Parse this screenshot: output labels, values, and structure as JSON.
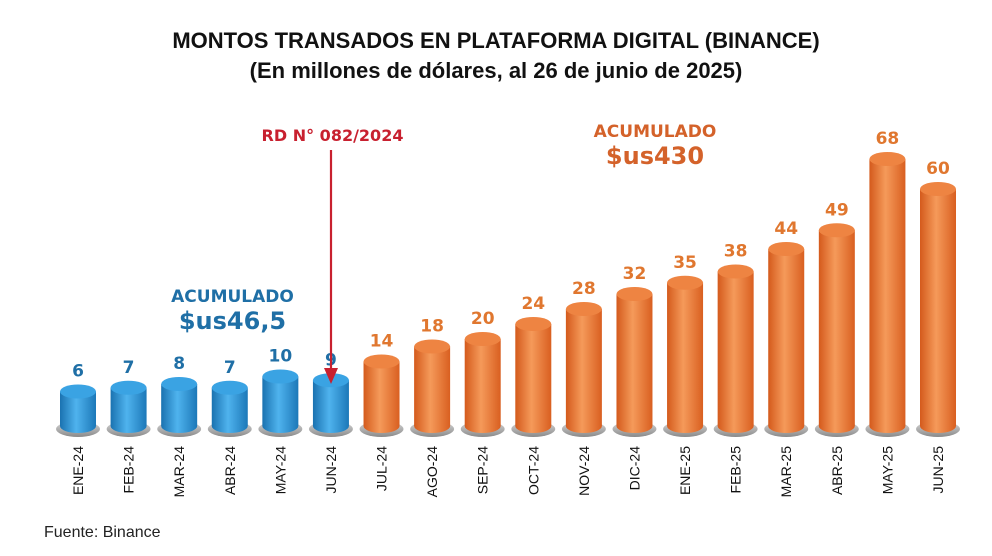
{
  "chart_data": {
    "type": "bar",
    "title": "MONTOS TRANSADOS EN PLATAFORMA DIGITAL (BINANCE)",
    "subtitle": "(En millones de dólares, al 26 de junio de 2025)",
    "xlabel": "",
    "ylabel": "",
    "categories": [
      "ENE-24",
      "FEB-24",
      "MAR-24",
      "ABR-24",
      "MAY-24",
      "JUN-24",
      "JUL-24",
      "AGO-24",
      "SEP-24",
      "OCT-24",
      "NOV-24",
      "DIC-24",
      "ENE-25",
      "FEB-25",
      "MAR-25",
      "ABR-25",
      "MAY-25",
      "JUN-25"
    ],
    "values": [
      6,
      7,
      8,
      7,
      10,
      9,
      14,
      18,
      20,
      24,
      28,
      32,
      35,
      38,
      44,
      49,
      68,
      60
    ],
    "value_labels": [
      "6",
      "7",
      "8",
      "7",
      "10",
      "9",
      "14",
      "18",
      "20",
      "24",
      "28",
      "32",
      "35",
      "38",
      "44",
      "49",
      "68",
      "60"
    ],
    "groups": [
      "before",
      "before",
      "before",
      "before",
      "before",
      "before",
      "after",
      "after",
      "after",
      "after",
      "after",
      "after",
      "after",
      "after",
      "after",
      "after",
      "after",
      "after"
    ],
    "colors": {
      "before": "#2f95d6",
      "after": "#ea7a33",
      "before_label": "#1f6fa6",
      "after_label": "#e0772f",
      "marker": "#c8202f"
    },
    "ylim": [
      0,
      70
    ],
    "grid": false,
    "annotations": {
      "marker_label": "RD N° 082/2024",
      "before_total_label": "ACUMULADO",
      "before_total_value": "$us46,5",
      "after_total_label": "ACUMULADO",
      "after_total_value": "$us430"
    },
    "source": "Fuente: Binance"
  }
}
